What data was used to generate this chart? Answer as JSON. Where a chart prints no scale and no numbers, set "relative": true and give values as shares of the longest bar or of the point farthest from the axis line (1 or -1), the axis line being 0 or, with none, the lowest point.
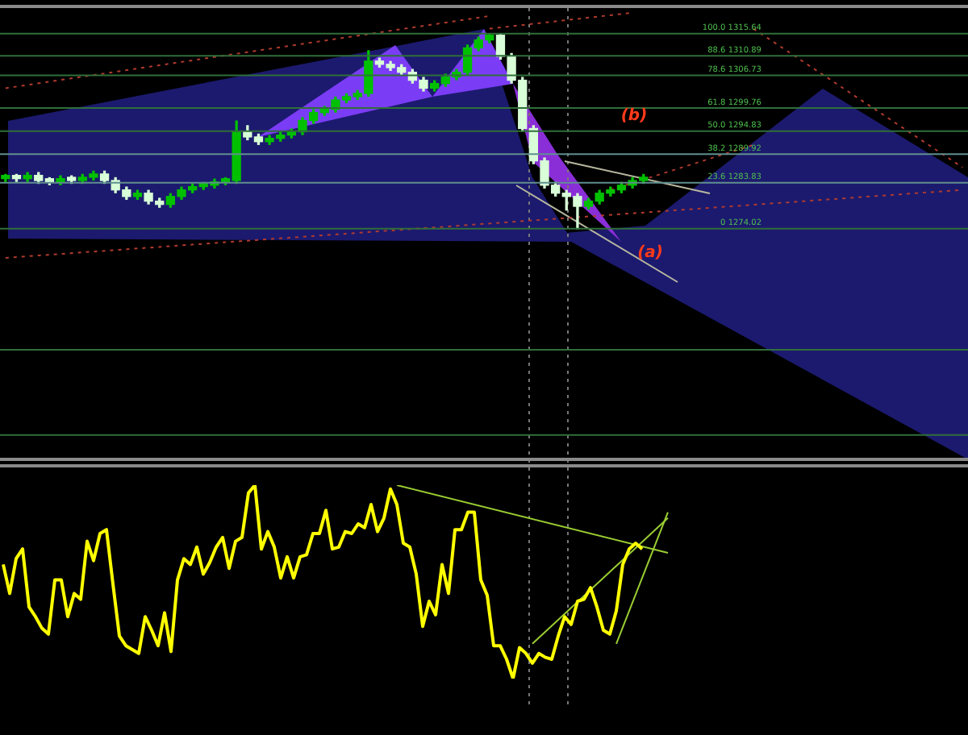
{
  "chart_data": [
    {
      "type": "candlestick",
      "categories": [
        null,
        null,
        null,
        null,
        null,
        null,
        null,
        null,
        null,
        null,
        null,
        null,
        null,
        null,
        null,
        null,
        null,
        null,
        null,
        null,
        null,
        null,
        null,
        null,
        null,
        null,
        null,
        null,
        null,
        null,
        null,
        null,
        null,
        null,
        null,
        null,
        null,
        null,
        null,
        null,
        null,
        null,
        null,
        null,
        null,
        null,
        null,
        null,
        null,
        null,
        null,
        null,
        null,
        null,
        null,
        null,
        null,
        null,
        null,
        null,
        null,
        null,
        null,
        null,
        null,
        null,
        null,
        null,
        null,
        null,
        null,
        null,
        null,
        null,
        null,
        null,
        null,
        null,
        null,
        null,
        null,
        null,
        null,
        null,
        null,
        null,
        null,
        null
      ],
      "ohlc": [
        [
          1284.7,
          1285.6,
          1284.1,
          1285.0
        ],
        [
          1285.0,
          1285.6,
          1284.1,
          1284.7
        ],
        [
          1284.7,
          1286.0,
          1284.1,
          1285.4
        ],
        [
          1285.4,
          1286.0,
          1283.7,
          1284.3
        ],
        [
          1284.3,
          1284.9,
          1283.4,
          1284.0
        ],
        [
          1284.0,
          1285.3,
          1283.4,
          1284.7
        ],
        [
          1284.7,
          1285.3,
          1283.7,
          1284.3
        ],
        [
          1284.3,
          1285.6,
          1283.7,
          1285.0
        ],
        [
          1285.0,
          1286.3,
          1284.4,
          1285.7
        ],
        [
          1285.7,
          1286.3,
          1283.7,
          1284.3
        ],
        [
          1284.3,
          1284.9,
          1281.7,
          1282.3
        ],
        [
          1282.3,
          1282.9,
          1280.3,
          1280.9
        ],
        [
          1280.9,
          1282.2,
          1280.3,
          1281.6
        ],
        [
          1281.6,
          1282.2,
          1279.3,
          1279.9
        ],
        [
          1279.9,
          1280.5,
          1278.6,
          1279.2
        ],
        [
          1279.2,
          1281.5,
          1278.6,
          1280.9
        ],
        [
          1280.9,
          1282.9,
          1280.3,
          1282.3
        ],
        [
          1282.3,
          1283.6,
          1281.7,
          1283.0
        ],
        [
          1283.0,
          1283.9,
          1282.4,
          1283.3
        ],
        [
          1283.3,
          1284.6,
          1282.7,
          1284.0
        ],
        [
          1284.0,
          1284.9,
          1283.4,
          1284.3
        ],
        [
          1284.3,
          1297.0,
          1283.7,
          1294.7
        ],
        [
          1294.7,
          1296.0,
          1293.0,
          1293.6
        ],
        [
          1293.6,
          1294.2,
          1292.0,
          1292.6
        ],
        [
          1292.6,
          1293.9,
          1292.0,
          1293.3
        ],
        [
          1293.3,
          1294.6,
          1292.7,
          1294.0
        ],
        [
          1294.0,
          1295.3,
          1293.4,
          1294.7
        ],
        [
          1294.7,
          1297.7,
          1294.1,
          1297.1
        ],
        [
          1297.1,
          1299.4,
          1296.5,
          1298.8
        ],
        [
          1298.8,
          1300.1,
          1298.2,
          1299.5
        ],
        [
          1299.5,
          1302.1,
          1298.9,
          1301.5
        ],
        [
          1301.5,
          1302.8,
          1300.9,
          1302.2
        ],
        [
          1302.2,
          1303.5,
          1301.6,
          1302.9
        ],
        [
          1302.9,
          1312.0,
          1302.3,
          1309.8
        ],
        [
          1309.8,
          1310.4,
          1308.5,
          1309.1
        ],
        [
          1309.1,
          1309.7,
          1307.8,
          1308.4
        ],
        [
          1308.4,
          1309.0,
          1306.8,
          1307.4
        ],
        [
          1307.4,
          1308.0,
          1305.1,
          1305.7
        ],
        [
          1305.7,
          1306.3,
          1303.4,
          1304.0
        ],
        [
          1304.0,
          1305.6,
          1303.4,
          1305.0
        ],
        [
          1305.0,
          1307.0,
          1304.4,
          1306.4
        ],
        [
          1306.4,
          1308.0,
          1305.8,
          1307.4
        ],
        [
          1307.4,
          1313.2,
          1306.8,
          1312.6
        ],
        [
          1312.6,
          1314.9,
          1312.0,
          1314.3
        ],
        [
          1314.3,
          1315.6,
          1313.7,
          1315.3
        ],
        [
          1315.3,
          1315.6,
          1310.2,
          1310.8
        ],
        [
          1310.8,
          1311.4,
          1305.1,
          1305.7
        ],
        [
          1305.7,
          1306.3,
          1294.8,
          1295.4
        ],
        [
          1295.4,
          1296.0,
          1287.9,
          1288.5
        ],
        [
          1288.5,
          1289.1,
          1282.7,
          1283.3
        ],
        [
          1283.3,
          1283.9,
          1281.0,
          1281.6
        ],
        [
          1281.6,
          1282.2,
          1278.0,
          1280.9
        ],
        [
          1280.9,
          1281.5,
          1274.0,
          1278.8
        ],
        [
          1278.8,
          1280.5,
          1278.2,
          1279.9
        ],
        [
          1279.9,
          1282.2,
          1279.3,
          1281.6
        ],
        [
          1281.6,
          1282.9,
          1281.0,
          1282.3
        ],
        [
          1282.3,
          1283.9,
          1281.7,
          1283.3
        ],
        [
          1283.3,
          1284.9,
          1282.7,
          1284.3
        ],
        [
          1284.3,
          1285.6,
          1283.7,
          1285.0
        ],
        null,
        null,
        null,
        null,
        null,
        null,
        null,
        null,
        null,
        null,
        null,
        null,
        null,
        null,
        null,
        null,
        null,
        null,
        null,
        null,
        null,
        null,
        null,
        null,
        null,
        null,
        null,
        null,
        null
      ],
      "series": [
        {
          "type": "line",
          "color": "#b03a2e",
          "line_style": "dotted",
          "values": [
            1304.0,
            null,
            null,
            null,
            null,
            null,
            null,
            null,
            null,
            null,
            null,
            null,
            null,
            null,
            null,
            null,
            null,
            null,
            null,
            null,
            null,
            null,
            null,
            null,
            null,
            null,
            null,
            null,
            null,
            null,
            null,
            null,
            null,
            null,
            null,
            null,
            null,
            null,
            null,
            null,
            null,
            null,
            null,
            null,
            1319.4,
            null,
            null,
            null,
            null,
            null,
            null,
            null,
            null,
            null,
            null,
            null,
            null,
            null,
            null,
            null,
            null,
            null,
            null,
            null,
            null,
            null,
            null,
            null,
            null,
            null,
            null,
            null,
            null,
            null,
            null,
            null,
            null,
            null,
            null,
            null,
            null,
            null,
            null,
            null,
            null,
            null,
            null,
            null
          ]
        },
        {
          "type": "line",
          "color": "#b03a2e",
          "line_style": "dotted",
          "values": [
            null,
            null,
            null,
            null,
            null,
            null,
            null,
            null,
            null,
            null,
            null,
            null,
            null,
            null,
            null,
            null,
            null,
            null,
            null,
            null,
            null,
            null,
            null,
            null,
            null,
            null,
            null,
            null,
            null,
            null,
            null,
            null,
            null,
            null,
            null,
            null,
            null,
            null,
            null,
            null,
            null,
            null,
            null,
            null,
            1316.7,
            null,
            null,
            null,
            null,
            null,
            null,
            null,
            null,
            null,
            null,
            null,
            null,
            1320.1,
            null,
            null,
            null,
            null,
            null,
            null,
            null,
            null,
            null,
            null,
            null,
            null,
            null,
            null,
            null,
            null,
            null,
            null,
            null,
            null,
            null,
            null,
            null,
            null,
            null,
            null,
            null,
            null,
            null,
            null
          ]
        },
        {
          "type": "line",
          "color": "#b03a2e",
          "line_style": "dotted",
          "values": [
            null,
            null,
            null,
            null,
            null,
            null,
            null,
            null,
            null,
            null,
            null,
            null,
            null,
            null,
            null,
            null,
            null,
            null,
            null,
            null,
            null,
            null,
            null,
            null,
            null,
            null,
            null,
            null,
            null,
            null,
            null,
            null,
            null,
            null,
            null,
            null,
            null,
            null,
            null,
            null,
            null,
            null,
            null,
            null,
            null,
            null,
            null,
            null,
            null,
            null,
            null,
            null,
            null,
            null,
            null,
            null,
            null,
            null,
            null,
            null,
            null,
            null,
            null,
            null,
            null,
            null,
            null,
            null,
            1316.7,
            null,
            null,
            null,
            null,
            null,
            null,
            null,
            null,
            null,
            null,
            null,
            null,
            null,
            null,
            null,
            null,
            null,
            null,
            1287.1
          ]
        },
        {
          "type": "line",
          "color": "#b03a2e",
          "line_style": "dotted",
          "values": [
            1267.8,
            null,
            null,
            null,
            null,
            null,
            null,
            null,
            null,
            null,
            null,
            null,
            null,
            null,
            null,
            null,
            null,
            null,
            null,
            null,
            null,
            null,
            null,
            null,
            null,
            null,
            null,
            null,
            null,
            null,
            null,
            null,
            null,
            null,
            null,
            null,
            null,
            null,
            null,
            null,
            null,
            null,
            null,
            null,
            null,
            null,
            null,
            null,
            null,
            null,
            null,
            null,
            null,
            null,
            null,
            null,
            null,
            null,
            null,
            null,
            null,
            null,
            null,
            null,
            null,
            null,
            null,
            null,
            null,
            null,
            null,
            null,
            null,
            null,
            null,
            null,
            null,
            null,
            null,
            null,
            null,
            null,
            null,
            null,
            null,
            null,
            null,
            1282.3
          ]
        },
        {
          "type": "line",
          "color": "#b03a2e",
          "line_style": "dotted",
          "values": [
            null,
            null,
            null,
            null,
            null,
            null,
            null,
            null,
            null,
            null,
            null,
            null,
            null,
            null,
            null,
            null,
            null,
            null,
            null,
            null,
            null,
            null,
            null,
            null,
            null,
            null,
            null,
            null,
            null,
            null,
            null,
            null,
            null,
            null,
            null,
            null,
            null,
            null,
            null,
            null,
            null,
            null,
            null,
            null,
            null,
            null,
            null,
            null,
            null,
            null,
            null,
            null,
            null,
            null,
            null,
            1282.3,
            null,
            null,
            null,
            null,
            null,
            null,
            null,
            null,
            null,
            null,
            null,
            null,
            1291.9,
            null,
            null,
            null,
            null,
            null,
            null,
            null,
            null,
            null,
            null,
            null,
            null,
            null,
            null,
            null,
            null,
            null,
            null,
            null
          ]
        }
      ],
      "ylim": [
        1224.8,
        1321.1
      ],
      "tick_labels": false,
      "ref_lines": [
        {
          "axis": "y",
          "value": 1315.64,
          "label": "100.0 1315.64",
          "color": "#2f6f3a"
        },
        {
          "axis": "y",
          "value": 1310.89,
          "label": "88.6 1310.89",
          "color": "#2f6f3a"
        },
        {
          "axis": "y",
          "value": 1306.73,
          "label": "78.6 1306.73",
          "color": "#2f6f3a"
        },
        {
          "axis": "y",
          "value": 1299.76,
          "label": "61.8 1299.76",
          "color": "#2f6f3a"
        },
        {
          "axis": "y",
          "value": 1294.83,
          "label": "50.0 1294.83",
          "color": "#2f6f3a"
        },
        {
          "axis": "y",
          "value": 1289.92,
          "label": "38.2 1289.92",
          "color": "#5f8f8f"
        },
        {
          "axis": "y",
          "value": 1283.83,
          "label": "23.6 1283.83",
          "color": "#5f8f8f"
        },
        {
          "axis": "y",
          "value": 1274.02,
          "label": "0 1274.02",
          "color": "#2f6f3a"
        },
        {
          "axis": "y",
          "value": 1248.2,
          "color": "#2f6f3a"
        },
        {
          "axis": "y",
          "value": 1230.0,
          "color": "#2f6f3a"
        }
      ],
      "annotations": [
        "(b)",
        "(a)"
      ]
    },
    {
      "type": "line",
      "relative": true,
      "categories": [
        null,
        null,
        null,
        null,
        null,
        null,
        null,
        null,
        null,
        null,
        null,
        null,
        null,
        null,
        null,
        null,
        null,
        null,
        null,
        null,
        null,
        null,
        null,
        null,
        null,
        null,
        null,
        null,
        null,
        null,
        null,
        null,
        null,
        null,
        null,
        null,
        null,
        null,
        null,
        null,
        null,
        null,
        null,
        null,
        null,
        null,
        null,
        null,
        null,
        null,
        null,
        null,
        null,
        null,
        null,
        null,
        null,
        null,
        null,
        null,
        null,
        null,
        null,
        null,
        null,
        null,
        null,
        null,
        null,
        null,
        null,
        null,
        null,
        null,
        null,
        null,
        null,
        null,
        null,
        null,
        null,
        null,
        null,
        null,
        null,
        null,
        null,
        null,
        null,
        null,
        null,
        null,
        null,
        null,
        null,
        null,
        null,
        null,
        null,
        null,
        null,
        null,
        null,
        null,
        null,
        null,
        null,
        null,
        null,
        null,
        null,
        null,
        null,
        null,
        null,
        null,
        null,
        null,
        null,
        null,
        null,
        null,
        null,
        null,
        null,
        null,
        null,
        null,
        null,
        null,
        null,
        null,
        null,
        null,
        null,
        null,
        null,
        null,
        null,
        null,
        null,
        null,
        null,
        null,
        null,
        null,
        null,
        null,
        null,
        null
      ],
      "series": [
        {
          "color": "#ffff00",
          "values": [
            0.59,
            0.44,
            0.62,
            0.67,
            0.37,
            0.32,
            0.26,
            0.23,
            0.51,
            0.51,
            0.32,
            0.44,
            0.41,
            0.71,
            0.61,
            0.75,
            0.77,
            0.49,
            0.22,
            0.17,
            0.15,
            0.13,
            0.32,
            0.25,
            0.17,
            0.34,
            0.14,
            0.51,
            0.62,
            0.59,
            0.68,
            0.54,
            0.6,
            0.68,
            0.73,
            0.57,
            0.71,
            0.73,
            0.96,
            1,
            0.67,
            0.76,
            0.68,
            0.52,
            0.63,
            0.52,
            0.63,
            0.64,
            0.75,
            0.75,
            0.87,
            0.67,
            0.68,
            0.76,
            0.75,
            0.8,
            0.78,
            0.9,
            0.76,
            0.83,
            0.98,
            0.9,
            0.7,
            0.68,
            0.54,
            0.27,
            0.4,
            0.33,
            0.59,
            0.44,
            0.77,
            0.77,
            0.86,
            0.86,
            0.51,
            0.43,
            0.17,
            0.17,
            0.1,
            0,
            0.16,
            0.13,
            0.08,
            0.13,
            0.11,
            0.1,
            0.22,
            0.32,
            0.28,
            0.4,
            0.41,
            0.47,
            0.37,
            0.25,
            0.23,
            0.35,
            0.59,
            0.67,
            0.7,
            0.67,
            null,
            null,
            null,
            null,
            null,
            null,
            null,
            null,
            null,
            null,
            null,
            null,
            null,
            null,
            null,
            null,
            null,
            null,
            null,
            null,
            null,
            null,
            null,
            null,
            null,
            null,
            null,
            null,
            null,
            null,
            null,
            null,
            null,
            null,
            null,
            null,
            null,
            null,
            null,
            null,
            null,
            null,
            null,
            null,
            null,
            null,
            null,
            null,
            null,
            null
          ]
        },
        {
          "type": "line",
          "color": "#9acd32",
          "values": [
            null,
            null,
            null,
            null,
            null,
            null,
            null,
            null,
            null,
            null,
            null,
            null,
            null,
            null,
            null,
            null,
            null,
            null,
            null,
            null,
            null,
            null,
            null,
            null,
            null,
            null,
            null,
            null,
            null,
            null,
            null,
            null,
            null,
            null,
            null,
            null,
            null,
            null,
            null,
            null,
            null,
            null,
            null,
            null,
            null,
            null,
            null,
            null,
            null,
            null,
            null,
            null,
            null,
            null,
            null,
            null,
            null,
            null,
            null,
            null,
            null,
            1.0,
            null,
            null,
            null,
            null,
            null,
            null,
            null,
            null,
            null,
            null,
            null,
            null,
            null,
            null,
            null,
            null,
            null,
            null,
            null,
            null,
            null,
            null,
            null,
            null,
            null,
            null,
            null,
            null,
            null,
            null,
            null,
            null,
            null,
            null,
            null,
            null,
            null,
            null,
            null,
            null,
            null,
            0.65,
            null,
            null,
            null,
            null,
            null,
            null,
            null,
            null,
            null,
            null,
            null,
            null,
            null,
            null,
            null,
            null,
            null,
            null,
            null,
            null,
            null,
            null,
            null,
            null,
            null,
            null,
            null,
            null,
            null,
            null,
            null,
            null,
            null,
            null,
            null,
            null,
            null,
            null,
            null,
            null,
            null,
            null,
            null,
            null,
            null,
            null
          ]
        },
        {
          "type": "line",
          "color": "#9acd32",
          "values": [
            null,
            null,
            null,
            null,
            null,
            null,
            null,
            null,
            null,
            null,
            null,
            null,
            null,
            null,
            null,
            null,
            null,
            null,
            null,
            null,
            null,
            null,
            null,
            null,
            null,
            null,
            null,
            null,
            null,
            null,
            null,
            null,
            null,
            null,
            null,
            null,
            null,
            null,
            null,
            null,
            null,
            null,
            null,
            null,
            null,
            null,
            null,
            null,
            null,
            null,
            null,
            null,
            null,
            null,
            null,
            null,
            null,
            null,
            null,
            null,
            null,
            null,
            null,
            null,
            null,
            null,
            null,
            null,
            null,
            null,
            null,
            null,
            null,
            null,
            null,
            null,
            null,
            null,
            null,
            null,
            null,
            null,
            0.18,
            null,
            null,
            null,
            null,
            null,
            null,
            null,
            null,
            null,
            null,
            null,
            null,
            null,
            null,
            null,
            null,
            null,
            null,
            null,
            null,
            0.83,
            null,
            null,
            null,
            null,
            null,
            null,
            null,
            null,
            null,
            null,
            null,
            null,
            null,
            null,
            null,
            null,
            null,
            null,
            null,
            null,
            null,
            null,
            null,
            null,
            null,
            null,
            null,
            null,
            null,
            null,
            null,
            null,
            null,
            null,
            null,
            null,
            null,
            null,
            null,
            null,
            null,
            null,
            null,
            null,
            null,
            null
          ]
        },
        {
          "type": "line",
          "color": "#9acd32",
          "values": [
            null,
            null,
            null,
            null,
            null,
            null,
            null,
            null,
            null,
            null,
            null,
            null,
            null,
            null,
            null,
            null,
            null,
            null,
            null,
            null,
            null,
            null,
            null,
            null,
            null,
            null,
            null,
            null,
            null,
            null,
            null,
            null,
            null,
            null,
            null,
            null,
            null,
            null,
            null,
            null,
            null,
            null,
            null,
            null,
            null,
            null,
            null,
            null,
            null,
            null,
            null,
            null,
            null,
            null,
            null,
            null,
            null,
            null,
            null,
            null,
            null,
            null,
            null,
            null,
            null,
            null,
            null,
            null,
            null,
            null,
            null,
            null,
            null,
            null,
            null,
            null,
            null,
            null,
            null,
            null,
            null,
            null,
            null,
            null,
            null,
            null,
            null,
            null,
            null,
            null,
            null,
            null,
            null,
            null,
            null,
            0.18,
            null,
            null,
            null,
            null,
            null,
            null,
            null,
            0.86,
            null,
            null,
            null,
            null,
            null,
            null,
            null,
            null,
            null,
            null,
            null,
            null,
            null,
            null,
            null,
            null,
            null,
            null,
            null,
            null,
            null,
            null,
            null,
            null,
            null,
            null,
            null,
            null,
            null,
            null,
            null,
            null,
            null,
            null,
            null,
            null,
            null,
            null,
            null,
            null,
            null,
            null,
            null,
            null,
            null,
            null
          ]
        }
      ]
    }
  ]
}
